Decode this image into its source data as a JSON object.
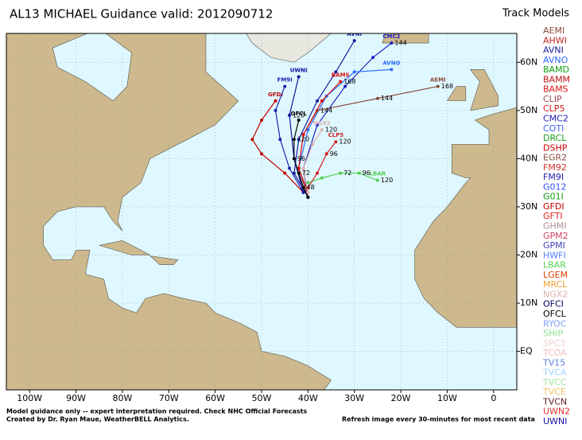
{
  "chart_data": {
    "type": "track-map",
    "title": "AL13 MICHAEL  Guidance valid: 2012090712",
    "legend_title": "Track Models",
    "xlim": [
      -105,
      5
    ],
    "ylim": [
      -8,
      66
    ],
    "xticks": [
      {
        "value": -100,
        "label": "100W"
      },
      {
        "value": -90,
        "label": "90W"
      },
      {
        "value": -80,
        "label": "80W"
      },
      {
        "value": -70,
        "label": "70W"
      },
      {
        "value": -60,
        "label": "60W"
      },
      {
        "value": -50,
        "label": "50W"
      },
      {
        "value": -40,
        "label": "40W"
      },
      {
        "value": -30,
        "label": "30W"
      },
      {
        "value": -20,
        "label": "20W"
      },
      {
        "value": -10,
        "label": "10W"
      },
      0
    ],
    "yticks": [
      {
        "value": 0,
        "label": "EQ"
      },
      {
        "value": 10,
        "label": "10N"
      },
      {
        "value": 20,
        "label": "20N"
      },
      {
        "value": 30,
        "label": "30N"
      },
      {
        "value": 40,
        "label": "40N"
      },
      {
        "value": 50,
        "label": "50N"
      },
      {
        "value": 60,
        "label": "60N"
      }
    ],
    "grid": true,
    "models": [
      {
        "name": "AEMI",
        "color": "#8b4a3a"
      },
      {
        "name": "AHWI",
        "color": "#c02020"
      },
      {
        "name": "AVNI",
        "color": "#1a1aa0"
      },
      {
        "name": "AVNO",
        "color": "#2a6aff"
      },
      {
        "name": "BAMD",
        "color": "#10a010"
      },
      {
        "name": "BAMM",
        "color": "#c01010"
      },
      {
        "name": "BAMS",
        "color": "#e01010"
      },
      {
        "name": "CLIP",
        "color": "#a05050"
      },
      {
        "name": "CLP5",
        "color": "#d02020"
      },
      {
        "name": "CMC2",
        "color": "#2020c0"
      },
      {
        "name": "COTI",
        "color": "#4060ff"
      },
      {
        "name": "DRCL",
        "color": "#20a020"
      },
      {
        "name": "DSHP",
        "color": "#c00000"
      },
      {
        "name": "EGR2",
        "color": "#905040"
      },
      {
        "name": "FM92",
        "color": "#d03030"
      },
      {
        "name": "FM9I",
        "color": "#2020b0"
      },
      {
        "name": "G012",
        "color": "#3050ff"
      },
      {
        "name": "G01I",
        "color": "#10a010"
      },
      {
        "name": "GFDI",
        "color": "#c00000"
      },
      {
        "name": "GFTI",
        "color": "#e02020"
      },
      {
        "name": "GHMI",
        "color": "#b09090"
      },
      {
        "name": "GPM2",
        "color": "#d04060"
      },
      {
        "name": "GPMI",
        "color": "#4040c0"
      },
      {
        "name": "HWFI",
        "color": "#5080ff"
      },
      {
        "name": "LBAR",
        "color": "#50d050"
      },
      {
        "name": "LGEM",
        "color": "#e04000"
      },
      {
        "name": "MRCL",
        "color": "#f0a030"
      },
      {
        "name": "NGX2",
        "color": "#e0b0b0"
      },
      {
        "name": "OFCI",
        "color": "#000060"
      },
      {
        "name": "OFCL",
        "color": "#000000"
      },
      {
        "name": "RYOC",
        "color": "#80a0ff"
      },
      {
        "name": "SHIP",
        "color": "#90e090"
      },
      {
        "name": "SPC3",
        "color": "#f0d0d0"
      },
      {
        "name": "TCOA",
        "color": "#f0c0c0"
      },
      {
        "name": "TV15",
        "color": "#6080e0"
      },
      {
        "name": "TVCA",
        "color": "#a0d0ff"
      },
      {
        "name": "TVCC",
        "color": "#a0e0a0"
      },
      {
        "name": "TVCE",
        "color": "#f0c060"
      },
      {
        "name": "TVCN",
        "color": "#602020"
      },
      {
        "name": "UWN2",
        "color": "#e03030"
      },
      {
        "name": "UWNI",
        "color": "#1010a0"
      }
    ],
    "tracks": [
      {
        "name": "AVNI",
        "color": "#1a1aa0",
        "lon": [
          -40,
          -43,
          -42,
          -38,
          -34,
          -30
        ],
        "lat": [
          32,
          37,
          44,
          52,
          58,
          64.5
        ],
        "labels": [
          null,
          null,
          null,
          null,
          null,
          null
        ]
      },
      {
        "name": "CMC2",
        "color": "#2020c0",
        "lon": [
          -40,
          -41,
          -38,
          -32,
          -26,
          -22
        ],
        "lat": [
          32,
          38,
          47,
          55,
          61,
          64
        ],
        "labels": [
          null,
          null,
          null,
          null,
          null,
          "144"
        ]
      },
      {
        "name": "AVNO",
        "color": "#2a6aff",
        "lon": [
          -40,
          -42,
          -40,
          -36,
          -30,
          -22
        ],
        "lat": [
          32,
          38,
          46,
          53,
          58,
          58.5
        ],
        "labels": [
          null,
          null,
          null,
          null,
          null,
          null
        ]
      },
      {
        "name": "AEMI",
        "color": "#8b4a3a",
        "lon": [
          -40,
          -42,
          -41,
          -38,
          -25,
          -12
        ],
        "lat": [
          32,
          38,
          45,
          50,
          52.5,
          55
        ],
        "labels": [
          null,
          null,
          null,
          "144",
          "144",
          "168"
        ]
      },
      {
        "name": "BAMS",
        "color": "#e01010",
        "lon": [
          -40,
          -42,
          -41,
          -37,
          -33
        ],
        "lat": [
          33,
          38,
          45,
          52,
          56
        ],
        "labels": [
          null,
          null,
          null,
          null,
          "168"
        ]
      },
      {
        "name": "LBAR",
        "color": "#50d050",
        "lon": [
          -40,
          -37,
          -33,
          -29,
          -25
        ],
        "lat": [
          35,
          36,
          37,
          37,
          35.5
        ],
        "labels": [
          null,
          null,
          "72",
          "96",
          "120"
        ]
      },
      {
        "name": "CLP5",
        "color": "#d02020",
        "lon": [
          -40,
          -38,
          -36,
          -34
        ],
        "lat": [
          34,
          37,
          41,
          43.5
        ],
        "labels": [
          null,
          null,
          "96",
          "120"
        ]
      },
      {
        "name": "NGX2",
        "color": "#e0b0b0",
        "lon": [
          -40,
          -41,
          -39,
          -37
        ],
        "lat": [
          33,
          38,
          43,
          46
        ],
        "labels": [
          null,
          null,
          null,
          "120"
        ]
      },
      {
        "name": "GFDI",
        "color": "#c00000",
        "lon": [
          -41,
          -45,
          -50,
          -52,
          -50,
          -47
        ],
        "lat": [
          33,
          37,
          41,
          44,
          48,
          52
        ],
        "labels": [
          null,
          null,
          null,
          null,
          null,
          null
        ]
      },
      {
        "name": "FM9I",
        "color": "#2020b0",
        "lon": [
          -41,
          -44,
          -46,
          -47,
          -45
        ],
        "lat": [
          33,
          38,
          44,
          50,
          55
        ],
        "labels": [
          null,
          null,
          null,
          null,
          null
        ]
      },
      {
        "name": "UWNI",
        "color": "#1010a0",
        "lon": [
          -41,
          -43,
          -44,
          -42
        ],
        "lat": [
          33,
          40,
          49,
          57
        ],
        "labels": [
          null,
          null,
          "120",
          null
        ]
      },
      {
        "name": "OFCL",
        "color": "#000000",
        "lon": [
          -40,
          -41,
          -42,
          -43,
          -43,
          -42
        ],
        "lat": [
          32,
          34,
          37,
          40,
          44,
          48
        ],
        "labels": [
          null,
          "48",
          "72",
          "96",
          "120",
          null
        ]
      }
    ],
    "notes": [
      "Model guidance only -- expert interpretation required.  Check NHC Official Forecasts",
      "Created by Dr. Ryan Maue, WeatherBELL Analytics."
    ],
    "refresh_note": "Refresh image every 30-minutes for most recent data"
  }
}
